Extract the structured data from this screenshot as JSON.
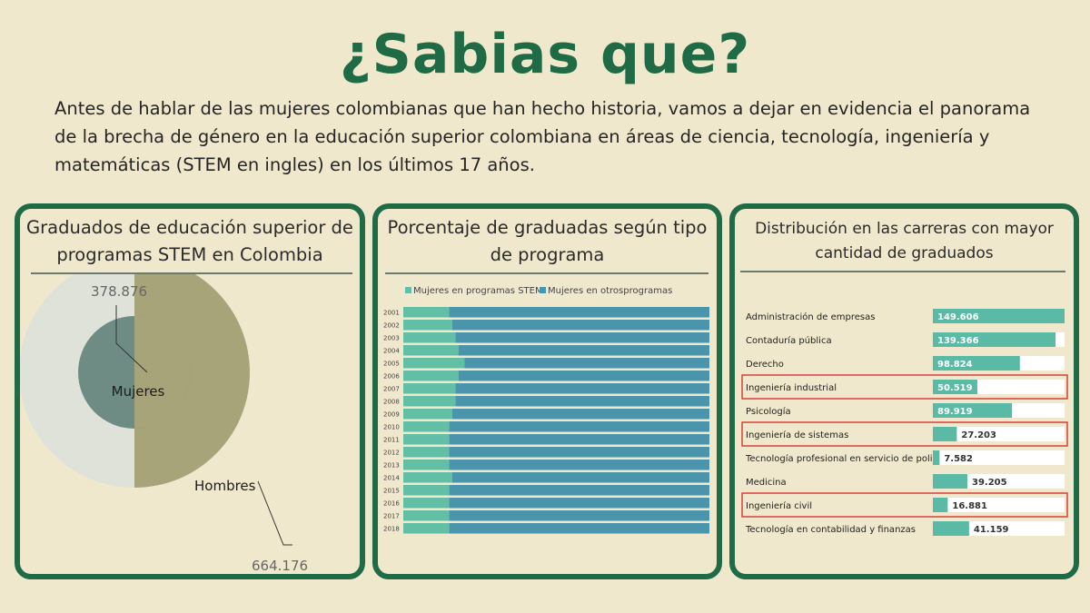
{
  "header": {
    "title": "¿Sabias que?",
    "intro": "Antes de hablar de las mujeres colombianas que han hecho historia, vamos a dejar en evidencia el panorama de la brecha de género en la educación superior colombiana en áreas de ciencia, tecnología, ingeniería y matemáticas (STEM en ingles) en los últimos 17 años."
  },
  "panels": {
    "p1": {
      "title": "Graduados de educación  superior de programas STEM en Colombia"
    },
    "p2": {
      "title": "Porcentaje de graduadas según tipo de programa"
    },
    "p3": {
      "title": "Distribución en las carreras con mayor cantidad de graduados"
    }
  },
  "colors": {
    "frame": "#1f6b45",
    "background": "#f0e8cc",
    "hombres": "#a8a47a",
    "mujeres_outer": "#dfe2d9",
    "mujeres_inner": "#6f8c84",
    "stem": "#62bfa6",
    "otros": "#4a94ac",
    "bar": "#5bbaa5",
    "highlight": "#d6403a"
  },
  "chart_data": [
    {
      "type": "pie",
      "labels": [
        "Mujeres",
        "Hombres"
      ],
      "values": [
        378876,
        664176
      ],
      "value_labels": [
        "378.876",
        "664.176"
      ]
    },
    {
      "type": "bar",
      "orientation": "horizontal",
      "stacked": true,
      "categories": [
        "2001",
        "2002",
        "2003",
        "2004",
        "2005",
        "2006",
        "2007",
        "2008",
        "2009",
        "2010",
        "2011",
        "2012",
        "2013",
        "2014",
        "2015",
        "2016",
        "2017",
        "2018"
      ],
      "series": [
        {
          "name": "Mujeres en programas STEM",
          "values": [
            15,
            16,
            17,
            18,
            20,
            18,
            17,
            17,
            16,
            15,
            15,
            15,
            15,
            16,
            15,
            15,
            15,
            15
          ]
        },
        {
          "name": "Mujeres en otrosprogramas",
          "values": [
            85,
            84,
            83,
            82,
            80,
            82,
            83,
            83,
            84,
            85,
            85,
            85,
            85,
            84,
            85,
            85,
            85,
            85
          ]
        }
      ],
      "xlim": [
        0,
        100
      ],
      "legend": "top"
    },
    {
      "type": "bar",
      "orientation": "horizontal",
      "categories": [
        "Administración de empresas",
        "Contaduría pública",
        "Derecho",
        "Ingeniería industrial",
        "Psicología",
        "Ingeniería de sistemas",
        "Tecnología profesional en servicio de policía",
        "Medicina",
        "Ingeniería civil",
        "Tecnología en contabilidad y finanzas"
      ],
      "values": [
        149606,
        139366,
        98824,
        50519,
        89919,
        27203,
        7582,
        39205,
        16881,
        41159
      ],
      "value_labels": [
        "149.606",
        "139.366",
        "98.824",
        "50.519",
        "89.919",
        "27.203",
        "7.582",
        "39.205",
        "16.881",
        "41.159"
      ],
      "highlighted": [
        "Ingeniería industrial",
        "Ingeniería de sistemas",
        "Ingeniería civil"
      ]
    }
  ]
}
